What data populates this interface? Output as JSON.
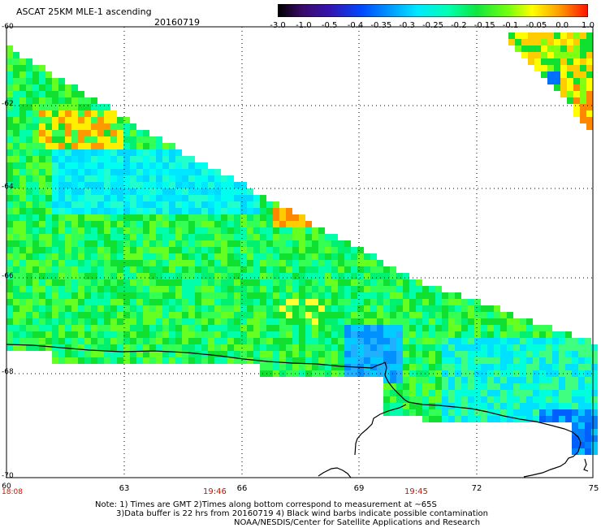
{
  "header": {
    "title": "ASCAT 25KM MLE-1 ascending",
    "date": "20160719"
  },
  "colorbar": {
    "ticks": [
      "-3.0",
      "-1.0",
      "-0.5",
      "-0.4",
      "-0.35",
      "-0.3",
      "-0.25",
      "-0.2",
      "-0.15",
      "-0.1",
      "-0.05",
      "0.0",
      "1.0"
    ],
    "colors": [
      "#2a0033",
      "#3a0a6a",
      "#2a1ca8",
      "#0048ff",
      "#0090ff",
      "#00c8ff",
      "#00ffee",
      "#00ff88",
      "#10e030",
      "#80ff10",
      "#ffff00",
      "#ff8800",
      "#ff1a00"
    ]
  },
  "axes": {
    "y_labels": [
      "-60",
      "-62",
      "-64",
      "-66",
      "-68",
      "-70"
    ],
    "x_labels": [
      "63",
      "66",
      "69",
      "72",
      "75"
    ],
    "x_left_label": "60",
    "time_labels": [
      "18:08",
      "19:46",
      "19:45"
    ]
  },
  "notes": {
    "line1": "Note: 1) Times are GMT 2)Times along bottom correspond to measurement at ~65S",
    "line2": "3)Data buffer is 22 hrs from 20160719 4) Black wind barbs indicate possible contamination",
    "line3": "NOAA/NESDIS/Center for Satellite Applications and Research"
  }
}
